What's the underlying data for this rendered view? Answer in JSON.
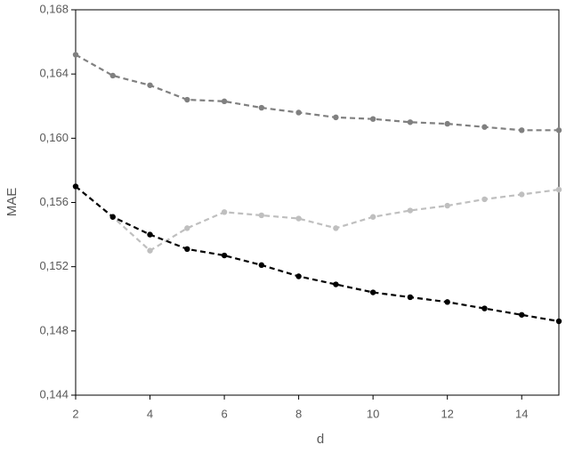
{
  "chart_data": {
    "type": "line",
    "x_label": "d",
    "y_label": "MAE",
    "x": [
      2,
      3,
      4,
      5,
      6,
      7,
      8,
      9,
      10,
      11,
      12,
      13,
      14,
      15
    ],
    "xlim": [
      2,
      15
    ],
    "xticks": [
      2,
      4,
      6,
      8,
      10,
      12,
      14
    ],
    "ylim": [
      0.144,
      0.168
    ],
    "yticks": [
      {
        "value": 0.144,
        "label": "0,144"
      },
      {
        "value": 0.148,
        "label": "0,148"
      },
      {
        "value": 0.152,
        "label": "0,152"
      },
      {
        "value": 0.156,
        "label": "0,156"
      },
      {
        "value": 0.16,
        "label": "0,160"
      },
      {
        "value": 0.164,
        "label": "0,164"
      },
      {
        "value": 0.168,
        "label": "0,168"
      }
    ],
    "series": [
      {
        "color": "#808080",
        "values": [
          0.1652,
          0.1639,
          0.1633,
          0.1624,
          0.1623,
          0.1619,
          0.1616,
          0.1613,
          0.1612,
          0.161,
          0.1609,
          0.1607,
          0.1605,
          0.1605
        ]
      },
      {
        "color": "#bfbfbf",
        "values": [
          0.157,
          0.1551,
          0.153,
          0.1544,
          0.1554,
          0.1552,
          0.155,
          0.1544,
          0.1551,
          0.1555,
          0.1558,
          0.1562,
          0.1565,
          0.1568
        ]
      },
      {
        "color": "#000000",
        "values": [
          0.157,
          0.1551,
          0.154,
          0.1531,
          0.1527,
          0.1521,
          0.1514,
          0.1509,
          0.1504,
          0.1501,
          0.1498,
          0.1494,
          0.149,
          0.1486
        ]
      }
    ]
  }
}
